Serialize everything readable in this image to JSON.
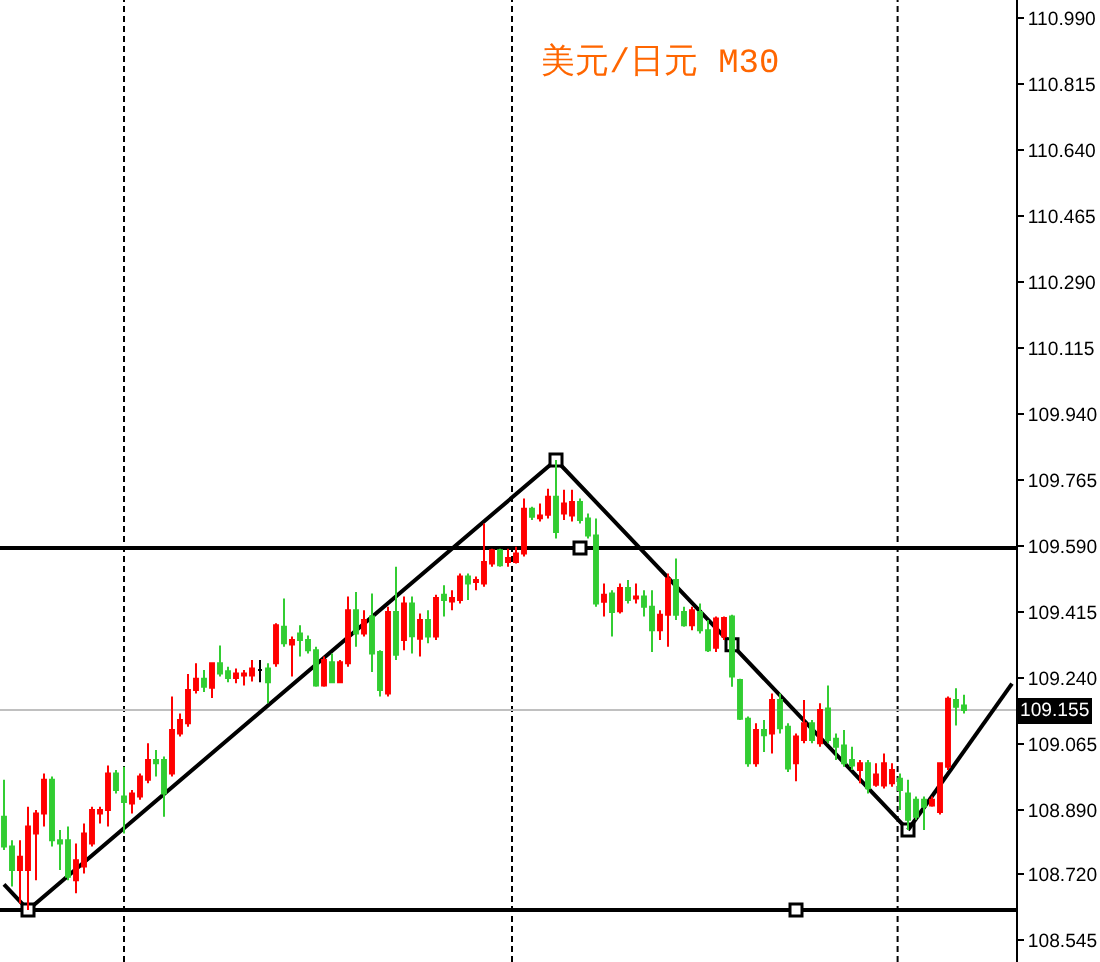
{
  "chart_data": {
    "type": "candlestick",
    "title": "美元/日元 M30",
    "categories": [
      null,
      null,
      null,
      null,
      null,
      null,
      null,
      null,
      null,
      null,
      null,
      null,
      null,
      null,
      null,
      null,
      null,
      null,
      null,
      null,
      null,
      null,
      null,
      null,
      null,
      null,
      null,
      null,
      null,
      null,
      null,
      null,
      null,
      null,
      null,
      null,
      null,
      null,
      null,
      null,
      null,
      null,
      null,
      null,
      null,
      null,
      null,
      null,
      null,
      null,
      null,
      null,
      null,
      null,
      null,
      null,
      null,
      null,
      null,
      null,
      null,
      null,
      null,
      null,
      null,
      null,
      null,
      null,
      null,
      null,
      null,
      null,
      null,
      null,
      null,
      null,
      null,
      null,
      null,
      null,
      null,
      null,
      null,
      null,
      null,
      null,
      null,
      null,
      null,
      null,
      null,
      null,
      null,
      null,
      null,
      null,
      null,
      null,
      null,
      null,
      null,
      null,
      null,
      null,
      null,
      null,
      null,
      null,
      null,
      null,
      null,
      null,
      null,
      null,
      null,
      null,
      null,
      null,
      null,
      null,
      null,
      null,
      null,
      null,
      null,
      null,
      null
    ],
    "ohlc": [
      [
        108.872,
        108.97,
        108.784,
        108.793
      ],
      [
        108.793,
        108.81,
        108.687,
        108.731
      ],
      [
        108.731,
        108.81,
        108.642,
        108.766
      ],
      [
        108.731,
        108.899,
        108.625,
        108.846
      ],
      [
        108.828,
        108.89,
        108.704,
        108.881
      ],
      [
        108.881,
        108.987,
        108.846,
        108.97
      ],
      [
        108.97,
        108.979,
        108.793,
        108.81
      ],
      [
        108.81,
        108.837,
        108.731,
        108.801
      ],
      [
        108.81,
        108.846,
        108.704,
        108.713
      ],
      [
        108.704,
        108.801,
        108.669,
        108.757
      ],
      [
        108.74,
        108.854,
        108.722,
        108.828
      ],
      [
        108.801,
        108.899,
        108.793,
        108.89
      ],
      [
        108.881,
        108.899,
        108.854,
        108.89
      ],
      [
        108.89,
        109.008,
        108.846,
        108.987
      ],
      [
        108.987,
        108.996,
        108.934,
        108.943
      ],
      [
        108.926,
        109.005,
        108.828,
        108.911
      ],
      [
        108.907,
        108.943,
        108.881,
        108.934
      ],
      [
        108.926,
        108.987,
        108.917,
        108.979
      ],
      [
        108.97,
        109.067,
        108.961,
        109.023
      ],
      [
        109.023,
        109.049,
        108.979,
        109.014
      ],
      [
        109.023,
        109.032,
        108.872,
        108.934
      ],
      [
        108.987,
        109.191,
        108.979,
        109.102
      ],
      [
        109.093,
        109.146,
        109.085,
        109.129
      ],
      [
        109.12,
        109.251,
        109.111,
        109.208
      ],
      [
        109.208,
        109.279,
        109.199,
        109.238
      ],
      [
        109.238,
        109.261,
        109.203,
        109.217
      ],
      [
        109.214,
        109.282,
        109.187,
        109.279
      ],
      [
        109.279,
        109.326,
        109.244,
        109.252
      ],
      [
        109.258,
        109.27,
        109.229,
        109.24
      ],
      [
        109.24,
        109.265,
        109.226,
        109.252
      ],
      [
        109.247,
        109.261,
        109.22,
        109.252
      ],
      [
        109.247,
        109.288,
        109.231,
        109.265
      ],
      [
        109.261,
        109.288,
        109.229,
        109.261
      ],
      [
        109.265,
        109.279,
        109.173,
        109.229
      ],
      [
        109.279,
        109.385,
        109.27,
        109.38
      ],
      [
        109.376,
        109.451,
        109.323,
        109.332
      ],
      [
        109.329,
        109.35,
        109.244,
        109.341
      ],
      [
        109.358,
        109.38,
        109.297,
        109.341
      ],
      [
        109.341,
        109.353,
        109.305,
        109.314
      ],
      [
        109.314,
        109.323,
        109.217,
        109.22
      ],
      [
        109.22,
        109.297,
        109.217,
        109.288
      ],
      [
        109.282,
        109.305,
        109.226,
        109.229
      ],
      [
        109.229,
        109.288,
        109.226,
        109.282
      ],
      [
        109.279,
        109.456,
        109.27,
        109.42
      ],
      [
        109.42,
        109.468,
        109.323,
        109.358
      ],
      [
        109.358,
        109.42,
        109.35,
        109.394
      ],
      [
        109.403,
        109.464,
        109.256,
        109.305
      ],
      [
        109.309,
        109.314,
        109.191,
        109.208
      ],
      [
        109.199,
        109.429,
        109.191,
        109.415
      ],
      [
        109.415,
        109.535,
        109.288,
        109.302
      ],
      [
        109.341,
        109.456,
        109.314,
        109.438
      ],
      [
        109.438,
        109.456,
        109.305,
        109.351
      ],
      [
        109.344,
        109.411,
        109.297,
        109.394
      ],
      [
        109.394,
        109.42,
        109.332,
        109.35
      ],
      [
        109.35,
        109.461,
        109.341,
        109.452
      ],
      [
        109.461,
        109.486,
        109.403,
        109.447
      ],
      [
        109.443,
        109.473,
        109.42,
        109.452
      ],
      [
        109.447,
        109.517,
        109.438,
        109.509
      ],
      [
        109.509,
        109.517,
        109.447,
        109.491
      ],
      [
        109.495,
        109.509,
        109.473,
        109.5
      ],
      [
        109.491,
        109.65,
        109.482,
        109.548
      ],
      [
        109.544,
        109.583,
        109.535,
        109.579
      ],
      [
        109.579,
        109.583,
        109.535,
        109.539
      ],
      [
        109.548,
        109.583,
        109.535,
        109.558
      ],
      [
        109.548,
        109.588,
        109.544,
        109.57
      ],
      [
        109.57,
        109.716,
        109.562,
        109.689
      ],
      [
        109.689,
        109.694,
        109.659,
        109.668
      ],
      [
        109.664,
        109.703,
        109.655,
        109.671
      ],
      [
        109.673,
        109.742,
        109.663,
        109.721
      ],
      [
        109.721,
        109.818,
        109.61,
        109.627
      ],
      [
        109.676,
        109.739,
        109.659,
        109.703
      ],
      [
        109.671,
        109.739,
        109.655,
        109.707
      ],
      [
        109.707,
        109.716,
        109.65,
        109.659
      ],
      [
        109.663,
        109.676,
        109.61,
        109.618
      ],
      [
        109.618,
        109.663,
        109.429,
        109.438
      ],
      [
        109.442,
        109.491,
        109.403,
        109.461
      ],
      [
        109.464,
        109.473,
        109.35,
        109.415
      ],
      [
        109.417,
        109.491,
        109.411,
        109.479
      ],
      [
        109.479,
        109.5,
        109.438,
        109.447
      ],
      [
        109.451,
        109.491,
        109.438,
        109.456
      ],
      [
        109.456,
        109.473,
        109.403,
        109.429
      ],
      [
        109.429,
        109.473,
        109.309,
        109.367
      ],
      [
        109.367,
        109.42,
        109.341,
        109.408
      ],
      [
        109.408,
        109.517,
        109.323,
        109.504
      ],
      [
        109.5,
        109.557,
        109.394,
        109.408
      ],
      [
        109.415,
        109.429,
        109.376,
        109.38
      ],
      [
        109.38,
        109.429,
        109.367,
        109.42
      ],
      [
        109.415,
        109.438,
        109.358,
        109.367
      ],
      [
        109.367,
        109.394,
        109.309,
        109.314
      ],
      [
        109.32,
        109.403,
        109.309,
        109.398
      ],
      [
        109.35,
        109.403,
        109.341,
        109.399
      ],
      [
        109.403,
        109.408,
        109.217,
        109.244
      ],
      [
        109.235,
        109.238,
        109.129,
        109.132
      ],
      [
        109.132,
        109.138,
        109.005,
        109.014
      ],
      [
        109.014,
        109.12,
        109.005,
        109.102
      ],
      [
        109.102,
        109.129,
        109.044,
        109.088
      ],
      [
        109.093,
        109.199,
        109.04,
        109.182
      ],
      [
        109.182,
        109.199,
        109.093,
        109.107
      ],
      [
        109.111,
        109.12,
        108.991,
        109.0
      ],
      [
        109.014,
        109.093,
        108.966,
        109.085
      ],
      [
        109.076,
        109.182,
        109.067,
        109.12
      ],
      [
        109.12,
        109.129,
        109.067,
        109.076
      ],
      [
        109.067,
        109.173,
        109.058,
        109.155
      ],
      [
        109.159,
        109.22,
        109.067,
        109.076
      ],
      [
        109.079,
        109.093,
        109.023,
        109.058
      ],
      [
        109.061,
        109.102,
        109.005,
        109.014
      ],
      [
        109.023,
        109.058,
        108.996,
        109.008
      ],
      [
        108.996,
        109.023,
        108.961,
        109.014
      ],
      [
        109.014,
        109.023,
        108.934,
        108.948
      ],
      [
        108.957,
        109.014,
        108.952,
        108.984
      ],
      [
        108.955,
        109.04,
        108.947,
        109.014
      ],
      [
        108.961,
        109.014,
        108.952,
        108.996
      ],
      [
        108.973,
        108.987,
        108.89,
        108.943
      ],
      [
        108.934,
        108.97,
        108.837,
        108.864
      ],
      [
        108.917,
        108.926,
        108.864,
        108.872
      ],
      [
        108.917,
        108.926,
        108.837,
        108.899
      ],
      [
        108.902,
        108.926,
        108.899,
        108.917
      ],
      [
        108.885,
        109.017,
        108.878,
        109.014
      ],
      [
        109.005,
        109.191,
        108.996,
        109.185
      ],
      [
        109.182,
        109.213,
        109.114,
        109.164
      ],
      [
        109.167,
        109.196,
        109.146,
        109.155
      ],
      null,
      null,
      null,
      null,
      null,
      null
    ],
    "colors": [
      "#32cd32",
      "#32cd32",
      "#ff0000",
      "#ff0000",
      "#ff0000",
      "#ff0000",
      "#32cd32",
      "#32cd32",
      "#32cd32",
      "#ff0000",
      "#ff0000",
      "#ff0000",
      "#ff0000",
      "#ff0000",
      "#32cd32",
      "#32cd32",
      "#ff0000",
      "#ff0000",
      "#ff0000",
      "#32cd32",
      "#32cd32",
      "#ff0000",
      "#ff0000",
      "#ff0000",
      "#ff0000",
      "#32cd32",
      "#ff0000",
      "#32cd32",
      "#32cd32",
      "#ff0000",
      "#ff0000",
      "#ff0000",
      "#000000",
      "#32cd32",
      "#ff0000",
      "#32cd32",
      "#ff0000",
      "#32cd32",
      "#32cd32",
      "#32cd32",
      "#ff0000",
      "#32cd32",
      "#ff0000",
      "#ff0000",
      "#32cd32",
      "#ff0000",
      "#32cd32",
      "#32cd32",
      "#ff0000",
      "#32cd32",
      "#ff0000",
      "#32cd32",
      "#ff0000",
      "#32cd32",
      "#ff0000",
      "#32cd32",
      "#ff0000",
      "#ff0000",
      "#32cd32",
      "#ff0000",
      "#ff0000",
      "#ff0000",
      "#32cd32",
      "#ff0000",
      "#ff0000",
      "#ff0000",
      "#32cd32",
      "#ff0000",
      "#ff0000",
      "#32cd32",
      "#ff0000",
      "#ff0000",
      "#32cd32",
      "#32cd32",
      "#32cd32",
      "#ff0000",
      "#32cd32",
      "#ff0000",
      "#32cd32",
      "#ff0000",
      "#32cd32",
      "#32cd32",
      "#ff0000",
      "#ff0000",
      "#32cd32",
      "#32cd32",
      "#ff0000",
      "#32cd32",
      "#32cd32",
      "#ff0000",
      "#ff0000",
      "#32cd32",
      "#32cd32",
      "#32cd32",
      "#ff0000",
      "#32cd32",
      "#ff0000",
      "#32cd32",
      "#32cd32",
      "#ff0000",
      "#ff0000",
      "#32cd32",
      "#ff0000",
      "#32cd32",
      "#32cd32",
      "#32cd32",
      "#32cd32",
      "#ff0000",
      "#32cd32",
      "#ff0000",
      "#ff0000",
      "#ff0000",
      "#32cd32",
      "#32cd32",
      "#32cd32",
      "#32cd32",
      "#ff0000",
      "#ff0000",
      "#ff0000",
      "#32cd32",
      "#32cd32",
      null,
      null,
      null,
      null,
      null,
      null
    ],
    "series": [
      {
        "type": "line",
        "color": "#000000",
        "values": [
          108.693,
          null,
          null,
          108.625,
          null,
          null,
          null,
          null,
          null,
          null,
          null,
          null,
          null,
          null,
          null,
          null,
          null,
          null,
          null,
          null,
          null,
          null,
          null,
          null,
          null,
          null,
          null,
          null,
          null,
          null,
          null,
          null,
          null,
          null,
          null,
          null,
          null,
          null,
          null,
          null,
          null,
          null,
          null,
          null,
          null,
          null,
          null,
          null,
          null,
          null,
          null,
          null,
          null,
          null,
          null,
          null,
          null,
          null,
          null,
          null,
          null,
          null,
          null,
          null,
          null,
          null,
          null,
          null,
          null,
          null,
          null,
          null,
          null,
          null,
          null,
          null,
          null,
          null,
          null,
          null,
          null,
          null,
          null,
          null,
          null,
          null,
          null,
          null,
          null,
          null,
          null,
          null,
          null,
          null,
          null,
          null,
          null,
          null,
          null,
          null,
          null,
          null,
          null,
          null,
          null,
          null,
          null,
          null,
          null,
          null,
          null,
          null,
          null,
          null,
          null,
          null,
          null,
          null,
          null,
          null,
          null,
          null,
          null,
          null,
          null,
          null,
          null
        ]
      },
      {
        "type": "line",
        "color": "#000000",
        "marker": "square",
        "values": [
          null,
          null,
          null,
          108.625,
          null,
          null,
          null,
          null,
          null,
          null,
          null,
          null,
          null,
          null,
          null,
          null,
          null,
          null,
          null,
          null,
          null,
          null,
          null,
          null,
          null,
          null,
          null,
          null,
          null,
          null,
          null,
          null,
          null,
          null,
          null,
          null,
          null,
          null,
          null,
          null,
          null,
          null,
          null,
          null,
          null,
          null,
          null,
          null,
          null,
          null,
          null,
          null,
          null,
          null,
          null,
          null,
          null,
          null,
          null,
          null,
          null,
          null,
          null,
          null,
          null,
          null,
          null,
          null,
          null,
          109.818,
          null,
          null,
          null,
          null,
          null,
          null,
          null,
          null,
          null,
          null,
          null,
          null,
          null,
          null,
          null,
          null,
          null,
          null,
          null,
          null,
          null,
          109.328,
          null,
          null,
          null,
          null,
          null,
          null,
          null,
          null,
          null,
          null,
          null,
          null,
          null,
          null,
          null,
          null,
          null,
          null,
          null,
          null,
          null,
          108.837,
          null,
          null,
          null,
          null,
          null,
          null,
          null,
          null,
          null,
          null,
          null,
          null,
          null
        ]
      },
      {
        "type": "line",
        "color": "#000000",
        "values": [
          null,
          null,
          null,
          null,
          null,
          null,
          null,
          null,
          null,
          null,
          null,
          null,
          null,
          null,
          null,
          null,
          null,
          null,
          null,
          null,
          null,
          null,
          null,
          null,
          null,
          null,
          null,
          null,
          null,
          null,
          null,
          null,
          null,
          null,
          null,
          null,
          null,
          null,
          null,
          null,
          null,
          null,
          null,
          null,
          null,
          null,
          null,
          null,
          null,
          null,
          null,
          null,
          null,
          null,
          null,
          null,
          null,
          null,
          null,
          null,
          null,
          null,
          null,
          null,
          null,
          null,
          null,
          null,
          null,
          null,
          null,
          null,
          null,
          null,
          null,
          null,
          null,
          null,
          null,
          null,
          null,
          null,
          null,
          null,
          null,
          null,
          null,
          null,
          null,
          null,
          null,
          null,
          null,
          null,
          null,
          null,
          null,
          null,
          null,
          null,
          null,
          null,
          null,
          null,
          null,
          null,
          null,
          null,
          null,
          null,
          null,
          null,
          null,
          108.837,
          null,
          null,
          null,
          null,
          null,
          null,
          null,
          null,
          null,
          null,
          null,
          null,
          109.225
        ]
      },
      {
        "type": "scatter",
        "color": "#000000",
        "marker": "square",
        "values": [
          null,
          null,
          null,
          null,
          null,
          null,
          null,
          null,
          null,
          null,
          null,
          null,
          null,
          null,
          null,
          null,
          null,
          null,
          null,
          null,
          null,
          null,
          null,
          null,
          null,
          null,
          null,
          null,
          null,
          null,
          null,
          null,
          null,
          null,
          null,
          null,
          null,
          null,
          null,
          null,
          null,
          null,
          null,
          null,
          null,
          null,
          null,
          null,
          null,
          null,
          null,
          null,
          null,
          null,
          null,
          null,
          null,
          null,
          null,
          null,
          null,
          null,
          null,
          null,
          null,
          null,
          null,
          null,
          null,
          null,
          null,
          null,
          109.585,
          null,
          null,
          null,
          null,
          null,
          null,
          null,
          null,
          null,
          null,
          null,
          null,
          null,
          null,
          null,
          null,
          null,
          null,
          null,
          null,
          null,
          null,
          null,
          null,
          null,
          null,
          108.625,
          null,
          null,
          null,
          null,
          null,
          null,
          null,
          null,
          null,
          null,
          null,
          null,
          null,
          null,
          null,
          null,
          null,
          null,
          null,
          null,
          null,
          null,
          null,
          null,
          null,
          null,
          null
        ]
      }
    ],
    "ref_lines": [
      {
        "axis": "y",
        "value": 109.585,
        "color": "#000000"
      },
      {
        "axis": "y",
        "value": 108.625,
        "color": "#000000"
      },
      {
        "axis": "y",
        "value": 109.155,
        "label": "109.155",
        "color": "#c0c0c0"
      }
    ],
    "ylim": [
      108.487,
      111.038
    ],
    "yticks": [
      {
        "value": 110.99,
        "label": "110.990"
      },
      110.815,
      {
        "value": 110.64,
        "label": "110.640"
      },
      110.465,
      {
        "value": 110.29,
        "label": "110.290"
      },
      110.115,
      {
        "value": 109.94,
        "label": "109.940"
      },
      109.765,
      {
        "value": 109.59,
        "label": "109.590"
      },
      109.415,
      {
        "value": 109.24,
        "label": "109.240"
      },
      109.065,
      {
        "value": 108.89,
        "label": "108.890"
      },
      {
        "value": 108.72,
        "label": "108.720"
      },
      108.545
    ],
    "tick_labels": "y"
  }
}
